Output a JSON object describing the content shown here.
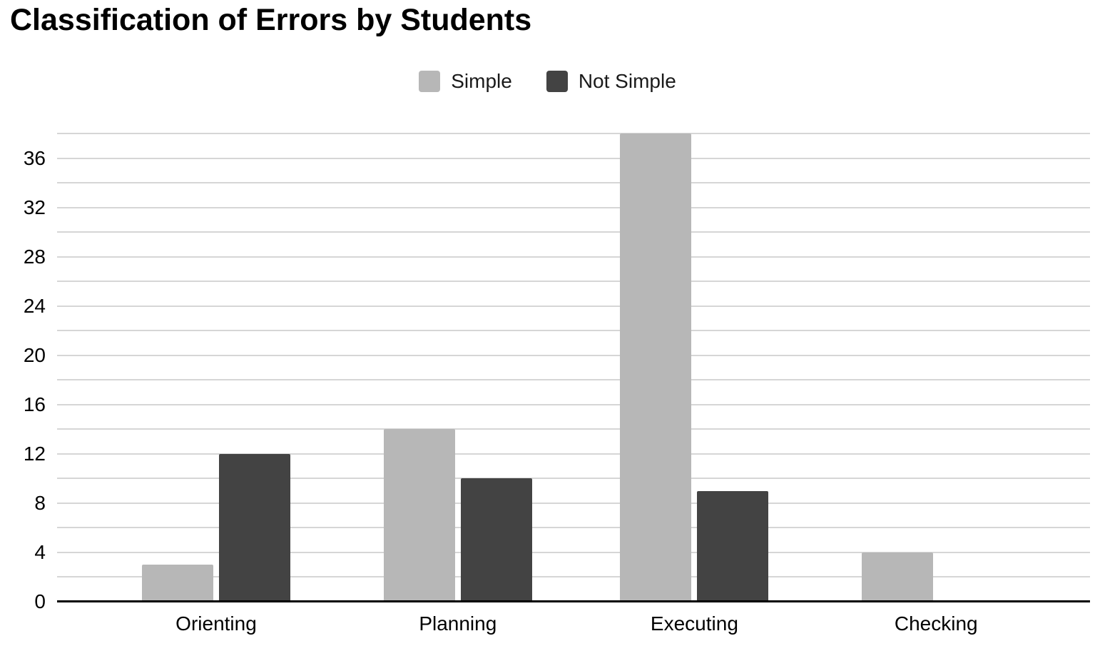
{
  "chart_data": {
    "type": "bar",
    "title": "Classification of Errors by Students",
    "categories": [
      "Orienting",
      "Planning",
      "Executing",
      "Checking"
    ],
    "series": [
      {
        "name": "Simple",
        "color": "#b7b7b7",
        "values": [
          3,
          14,
          38,
          4
        ]
      },
      {
        "name": "Not Simple",
        "color": "#434343",
        "values": [
          12,
          10,
          9,
          0
        ]
      }
    ],
    "xlabel": "",
    "ylabel": "",
    "ylim": [
      0,
      38
    ],
    "y_tick_labels": [
      "0",
      "4",
      "8",
      "12",
      "16",
      "20",
      "24",
      "28",
      "32",
      "36"
    ],
    "y_major_tick_step": 4,
    "y_minor_grid_step": 2,
    "grid": true,
    "legend_position": "top-center",
    "colors": {
      "grid": "#d6d6d6",
      "axis": "#000000",
      "text": "#000000",
      "background": "#ffffff"
    }
  }
}
